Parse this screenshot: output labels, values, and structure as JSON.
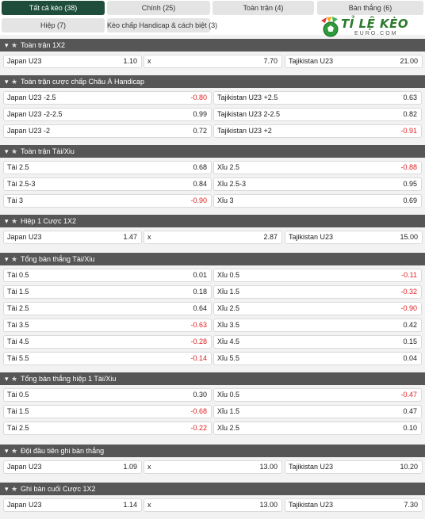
{
  "tabs": [
    {
      "label": "Tất cả kèo (38)",
      "active": true
    },
    {
      "label": "Chính (25)",
      "active": false
    },
    {
      "label": "Toàn trận (4)",
      "active": false
    },
    {
      "label": "Bàn thắng (6)",
      "active": false
    },
    {
      "label": "Hiệp (7)",
      "active": false
    },
    {
      "label": "Kèo chấp Handicap & cách biệt (3)",
      "active": false
    }
  ],
  "logo": {
    "title": "TỈ LỆ KÈO",
    "subtitle": "EURO.COM"
  },
  "sections": [
    {
      "title": "Toàn trận 1X2",
      "layout": "three",
      "rows": [
        [
          {
            "label": "Japan U23",
            "value": "1.10"
          },
          {
            "label": "x",
            "value": "7.70"
          },
          {
            "label": "Tajikistan U23",
            "value": "21.00"
          }
        ]
      ]
    },
    {
      "title": "Toàn trận cược chấp Châu Á Handicap",
      "layout": "two",
      "rows": [
        [
          {
            "label": "Japan U23 ",
            "line": "-2.5",
            "value": "-0.80"
          },
          {
            "label": "Tajikistan U23 ",
            "line": "+2.5",
            "value": "0.63"
          }
        ],
        [
          {
            "label": "Japan U23 ",
            "line": "-2-2.5",
            "value": "0.99"
          },
          {
            "label": "Tajikistan U23 ",
            "line": "2-2.5",
            "value": "0.82"
          }
        ],
        [
          {
            "label": "Japan U23 ",
            "line": "-2",
            "value": "0.72"
          },
          {
            "label": "Tajikistan U23 ",
            "line": "+2",
            "value": "-0.91"
          }
        ]
      ]
    },
    {
      "title": "Toàn trận Tài/Xiu",
      "layout": "two",
      "rows": [
        [
          {
            "label": "Tài ",
            "line": "2.5",
            "value": "0.68"
          },
          {
            "label": "Xỉu ",
            "line": "2.5",
            "value": "-0.88"
          }
        ],
        [
          {
            "label": "Tài ",
            "line": "2.5-3",
            "value": "0.84"
          },
          {
            "label": "Xỉu ",
            "line": "2.5-3",
            "value": "0.95"
          }
        ],
        [
          {
            "label": "Tài ",
            "line": "3",
            "value": "-0.90"
          },
          {
            "label": "Xỉu ",
            "line": "3",
            "value": "0.69"
          }
        ]
      ]
    },
    {
      "title": "Hiệp 1 Cược 1X2",
      "layout": "three",
      "rows": [
        [
          {
            "label": "Japan U23",
            "value": "1.47"
          },
          {
            "label": "x",
            "value": "2.87"
          },
          {
            "label": "Tajikistan U23",
            "value": "15.00"
          }
        ]
      ]
    },
    {
      "title": "Tổng bàn thắng Tài/Xiu",
      "layout": "two",
      "rows": [
        [
          {
            "label": "Tài ",
            "line": "0.5",
            "value": "0.01"
          },
          {
            "label": "Xỉu ",
            "line": "0.5",
            "value": "-0.11"
          }
        ],
        [
          {
            "label": "Tài ",
            "line": "1.5",
            "value": "0.18"
          },
          {
            "label": "Xỉu ",
            "line": "1.5",
            "value": "-0.32"
          }
        ],
        [
          {
            "label": "Tài ",
            "line": "2.5",
            "value": "0.64"
          },
          {
            "label": "Xỉu ",
            "line": "2.5",
            "value": "-0.90"
          }
        ],
        [
          {
            "label": "Tài ",
            "line": "3.5",
            "value": "-0.63"
          },
          {
            "label": "Xỉu ",
            "line": "3.5",
            "value": "0.42"
          }
        ],
        [
          {
            "label": "Tài ",
            "line": "4.5",
            "value": "-0.28"
          },
          {
            "label": "Xỉu ",
            "line": "4.5",
            "value": "0.15"
          }
        ],
        [
          {
            "label": "Tài ",
            "line": "5.5",
            "value": "-0.14"
          },
          {
            "label": "Xỉu ",
            "line": "5.5",
            "value": "0.04"
          }
        ]
      ]
    },
    {
      "title": "Tổng bàn thắng hiệp 1 Tài/Xiu",
      "layout": "two",
      "rows": [
        [
          {
            "label": "Tài ",
            "line": "0.5",
            "value": "0.30"
          },
          {
            "label": "Xỉu ",
            "line": "0.5",
            "value": "-0.47"
          }
        ],
        [
          {
            "label": "Tài ",
            "line": "1.5",
            "value": "-0.68"
          },
          {
            "label": "Xỉu ",
            "line": "1.5",
            "value": "0.47"
          }
        ],
        [
          {
            "label": "Tài ",
            "line": "2.5",
            "value": "-0.22"
          },
          {
            "label": "Xỉu ",
            "line": "2.5",
            "value": "0.10"
          }
        ]
      ]
    },
    {
      "title": "Đội đầu tiên ghi bàn thắng",
      "layout": "three",
      "rows": [
        [
          {
            "label": "Japan U23",
            "value": "1.09"
          },
          {
            "label": "x",
            "value": "13.00"
          },
          {
            "label": "Tajikistan U23",
            "value": "10.20"
          }
        ]
      ]
    },
    {
      "title": "Ghi bàn cuối Cược 1X2",
      "layout": "three",
      "rows": [
        [
          {
            "label": "Japan U23",
            "value": "1.14"
          },
          {
            "label": "x",
            "value": "13.00"
          },
          {
            "label": "Tajikistan U23",
            "value": "7.30"
          }
        ]
      ]
    }
  ],
  "colors": {
    "header": "#565656",
    "activeTab": "#1f4d3c",
    "negative": "#e02020"
  },
  "icons": {
    "collapse": "chevron-down-icon",
    "favorite": "star-icon"
  }
}
